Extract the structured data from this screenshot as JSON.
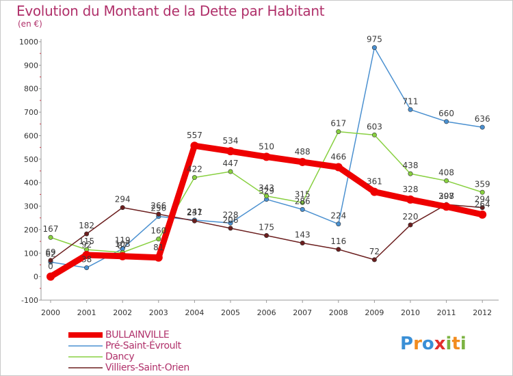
{
  "header": {
    "title": "Evolution du Montant de la Dette par Habitant",
    "subtitle": "(en €)"
  },
  "logo": {
    "text": "Proxiti",
    "colors": [
      "#3a8fd6",
      "#f28c1e",
      "#3a8fd6",
      "#e2302c",
      "#7cb342",
      "#f28c1e",
      "#7cb342"
    ]
  },
  "chart_data": {
    "type": "line",
    "x": [
      "2000",
      "2001",
      "2002",
      "2003",
      "2004",
      "2005",
      "2006",
      "2007",
      "2008",
      "2009",
      "2010",
      "2011",
      "2012"
    ],
    "ylim": [
      -100,
      1000
    ],
    "yticks": [
      -100,
      0,
      100,
      200,
      300,
      400,
      500,
      600,
      700,
      800,
      900,
      1000
    ],
    "grid": false,
    "legend_position": "bottom-left",
    "series": [
      {
        "name": "BULLAINVILLE",
        "color": "#ee0000",
        "values": [
          0,
          92,
          87,
          81,
          557,
          534,
          510,
          488,
          466,
          361,
          328,
          298,
          264
        ],
        "labels": [
          "0",
          "92",
          "87",
          "81",
          "557",
          "534",
          "510",
          "488",
          "466",
          "361",
          "328",
          "298",
          "264"
        ]
      },
      {
        "name": "Pré-Saint-Évroult",
        "color": "#4a90d0",
        "values": [
          62,
          38,
          119,
          256,
          241,
          228,
          329,
          286,
          224,
          975,
          711,
          660,
          636
        ],
        "labels": [
          "62",
          "38",
          "119",
          "256",
          "241",
          "228",
          "329",
          "286",
          "224",
          "975",
          "711",
          "660",
          "636"
        ]
      },
      {
        "name": "Dancy",
        "color": "#88d040",
        "values": [
          167,
          115,
          103,
          160,
          422,
          447,
          343,
          315,
          617,
          603,
          438,
          408,
          359
        ],
        "labels": [
          "167",
          "115",
          "103",
          "160",
          "422",
          "447",
          "343",
          "315",
          "617",
          "603",
          "438",
          "408",
          "359"
        ]
      },
      {
        "name": "Villiers-Saint-Orien",
        "color": "#6b1e1e",
        "values": [
          69,
          182,
          294,
          266,
          237,
          206,
          175,
          143,
          116,
          72,
          220,
          307,
          294
        ],
        "labels": [
          "69",
          "182",
          "294",
          "266",
          "237",
          "206",
          "175",
          "143",
          "116",
          "72",
          "220",
          "307",
          "294"
        ]
      }
    ]
  }
}
